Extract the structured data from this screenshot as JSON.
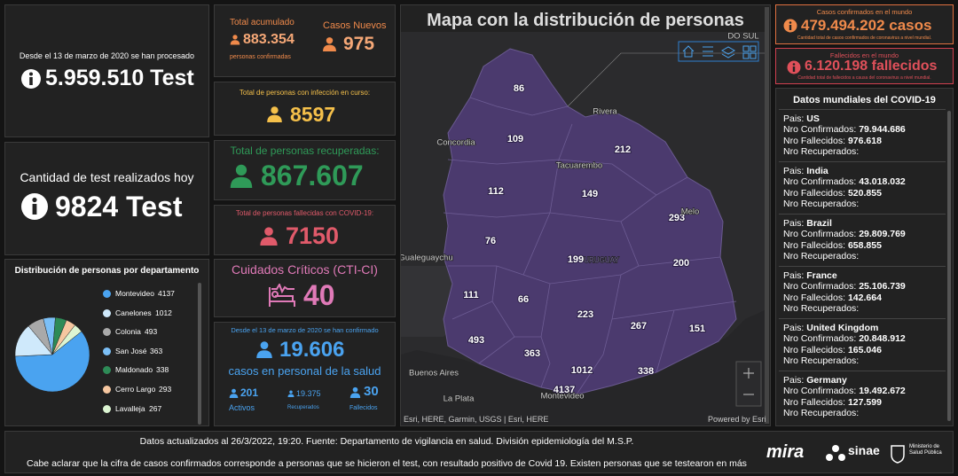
{
  "tests_total": {
    "caption": "Desde el 13 de marzo de 2020 se han procesado",
    "value": "5.959.510 Test"
  },
  "tests_today": {
    "caption": "Cantidad de test realizados hoy",
    "value": "9824 Test"
  },
  "departments": {
    "title": "Distribución de personas por departamento",
    "items": [
      {
        "name": "Montevideo",
        "value": 4137,
        "color": "#4aa3f0"
      },
      {
        "name": "Canelones",
        "value": 1012,
        "color": "#cfe9fb"
      },
      {
        "name": "Colonia",
        "value": 493,
        "color": "#a9a9a9"
      },
      {
        "name": "San José",
        "value": 363,
        "color": "#7cc0f7"
      },
      {
        "name": "Maldonado",
        "value": 338,
        "color": "#2e8b57"
      },
      {
        "name": "Cerro Largo",
        "value": 293,
        "color": "#f6c7a0"
      },
      {
        "name": "Lavalleja",
        "value": 267,
        "color": "#dcf5d2"
      }
    ]
  },
  "accumulated": {
    "label": "Total acumulado",
    "value": "883.354",
    "sublabel": "personas confirmadas"
  },
  "new_cases": {
    "label": "Casos Nuevos",
    "value": "975"
  },
  "active": {
    "label": "Total de personas con infección en curso:",
    "value": "8597"
  },
  "recovered": {
    "label": "Total de personas recuperadas:",
    "value": "867.607"
  },
  "deceased": {
    "label": "Total de personas fallecidas con COVID-19:",
    "value": "7150"
  },
  "critical": {
    "label": "Cuidados Críticos (CTI-CI)",
    "value": "40"
  },
  "health_staff": {
    "caption": "Desde el 13 de marzo de 2020 se han confirmado",
    "value": "19.606",
    "label": "casos en personal de la salud",
    "active": {
      "value": "201",
      "label": "Activos"
    },
    "recovered": {
      "value": "19.375",
      "label": "Recuperados"
    },
    "deceased": {
      "value": "30",
      "label": "Fallecidos"
    }
  },
  "map": {
    "title": "Mapa con la distribución de personas",
    "counts": [
      86,
      109,
      212,
      112,
      149,
      293,
      76,
      199,
      200,
      111,
      66,
      223,
      267,
      151,
      493,
      363,
      1012,
      338,
      4137
    ],
    "places": [
      "DO SUL",
      "Rivera",
      "Concordia",
      "Tacuarembo",
      "Melo",
      "Gualeguaychu",
      "URUGUAY",
      "Buenos Aires",
      "La Plata",
      "Montevideo"
    ],
    "attribution": "Esri, HERE, Garmin, USGS | Esri, HERE",
    "powered": "Powered by Esri"
  },
  "world_confirmed": {
    "label": "Casos confirmados en el mundo",
    "value": "479.494.202 casos",
    "note": "Cantidad total de casos confirmados de coronavirus a nivel mundial."
  },
  "world_deaths": {
    "label": "Fallecidos en el mundo",
    "value": "6.120.198 fallecidos",
    "note": "Cantidad total de fallecidos a causa del coronavirus a nivel mundial."
  },
  "world": {
    "title": "Datos mundiales del COVID-19",
    "labels": {
      "country": "Pais:",
      "confirmed": "Nro Confirmados:",
      "deaths": "Nro Fallecidos:",
      "recovered": "Nro Recuperados:"
    },
    "countries": [
      {
        "country": "US",
        "confirmed": "79.944.686",
        "deaths": "976.618"
      },
      {
        "country": "India",
        "confirmed": "43.018.032",
        "deaths": "520.855"
      },
      {
        "country": "Brazil",
        "confirmed": "29.809.769",
        "deaths": "658.855"
      },
      {
        "country": "France",
        "confirmed": "25.106.739",
        "deaths": "142.664"
      },
      {
        "country": "United Kingdom",
        "confirmed": "20.848.912",
        "deaths": "165.046"
      },
      {
        "country": "Germany",
        "confirmed": "19.492.672",
        "deaths": "127.599"
      }
    ]
  },
  "footer": {
    "updated": "Datos actualizados al 26/3/2022, 19:20. Fuente: Departamento de vigilancia en salud. División epidemiología del M.S.P.",
    "note": "Cabe aclarar que la cifra de casos confirmados corresponde a personas que se hicieron el test, con resultado positivo de Covid 19. Existen personas que se testearon en más",
    "logos": [
      "mira",
      "sinae",
      "Ministerio de Salud Pública"
    ]
  }
}
